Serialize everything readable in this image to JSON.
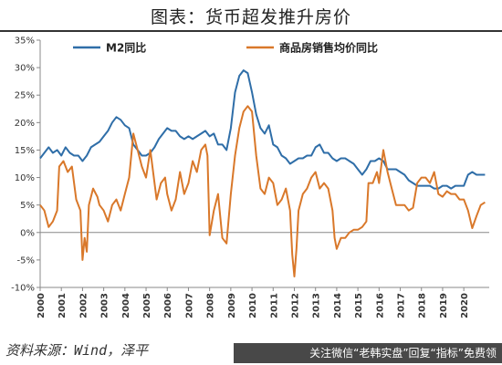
{
  "header": {
    "title": "图表：货币超发推升房价"
  },
  "footer": {
    "source": "资料来源：Wind，泽平",
    "banner": "关注微信“老韩实盘”回复“指标”免费领"
  },
  "chart_data": {
    "type": "line",
    "title": "图表：货币超发推升房价",
    "xlabel": "",
    "ylabel": "",
    "xlim": [
      2000,
      2021.2
    ],
    "ylim": [
      -10,
      35
    ],
    "yticks": [
      -10,
      -5,
      0,
      5,
      10,
      15,
      20,
      25,
      30,
      35
    ],
    "ytick_labels": [
      "-10%",
      "-5%",
      "0%",
      "5%",
      "10%",
      "15%",
      "20%",
      "25%",
      "30%",
      "35%"
    ],
    "xticks": [
      2000,
      2001,
      2002,
      2003,
      2004,
      2005,
      2006,
      2007,
      2008,
      2009,
      2010,
      2011,
      2012,
      2013,
      2014,
      2015,
      2016,
      2017,
      2018,
      2019,
      2020
    ],
    "xtick_labels": [
      "2000",
      "2001",
      "2002",
      "2003",
      "2004",
      "2005",
      "2006",
      "2007",
      "2008",
      "2009",
      "2010",
      "2011",
      "2012",
      "2013",
      "2014",
      "2015",
      "2016",
      "2017",
      "2018",
      "2019",
      "2020"
    ],
    "grid": false,
    "legend_position": "top",
    "series": [
      {
        "name": "M2同比",
        "color": "#2f6ea8",
        "points": [
          [
            2000.0,
            13.5
          ],
          [
            2000.2,
            14.5
          ],
          [
            2000.4,
            15.5
          ],
          [
            2000.6,
            14.5
          ],
          [
            2000.8,
            15.0
          ],
          [
            2001.0,
            14.0
          ],
          [
            2001.2,
            15.5
          ],
          [
            2001.4,
            14.5
          ],
          [
            2001.6,
            14.0
          ],
          [
            2001.8,
            14.0
          ],
          [
            2002.0,
            13.0
          ],
          [
            2002.2,
            14.0
          ],
          [
            2002.4,
            15.5
          ],
          [
            2002.6,
            16.0
          ],
          [
            2002.8,
            16.5
          ],
          [
            2003.0,
            17.5
          ],
          [
            2003.2,
            18.5
          ],
          [
            2003.4,
            20.0
          ],
          [
            2003.6,
            21.0
          ],
          [
            2003.8,
            20.5
          ],
          [
            2004.0,
            19.5
          ],
          [
            2004.2,
            19.0
          ],
          [
            2004.4,
            16.0
          ],
          [
            2004.6,
            15.0
          ],
          [
            2004.8,
            14.0
          ],
          [
            2005.0,
            14.0
          ],
          [
            2005.2,
            14.5
          ],
          [
            2005.4,
            15.5
          ],
          [
            2005.6,
            17.0
          ],
          [
            2005.8,
            18.0
          ],
          [
            2006.0,
            19.0
          ],
          [
            2006.2,
            18.5
          ],
          [
            2006.4,
            18.5
          ],
          [
            2006.6,
            17.5
          ],
          [
            2006.8,
            17.0
          ],
          [
            2007.0,
            17.5
          ],
          [
            2007.2,
            17.0
          ],
          [
            2007.4,
            17.5
          ],
          [
            2007.6,
            18.0
          ],
          [
            2007.8,
            18.5
          ],
          [
            2008.0,
            17.5
          ],
          [
            2008.2,
            18.0
          ],
          [
            2008.4,
            16.0
          ],
          [
            2008.6,
            16.0
          ],
          [
            2008.8,
            15.0
          ],
          [
            2009.0,
            19.0
          ],
          [
            2009.2,
            25.5
          ],
          [
            2009.4,
            28.5
          ],
          [
            2009.6,
            29.5
          ],
          [
            2009.8,
            29.0
          ],
          [
            2010.0,
            25.5
          ],
          [
            2010.2,
            21.5
          ],
          [
            2010.4,
            19.0
          ],
          [
            2010.6,
            18.0
          ],
          [
            2010.8,
            19.5
          ],
          [
            2011.0,
            16.0
          ],
          [
            2011.2,
            15.5
          ],
          [
            2011.4,
            14.0
          ],
          [
            2011.6,
            13.5
          ],
          [
            2011.8,
            12.5
          ],
          [
            2012.0,
            13.0
          ],
          [
            2012.2,
            13.5
          ],
          [
            2012.4,
            13.5
          ],
          [
            2012.6,
            14.0
          ],
          [
            2012.8,
            14.0
          ],
          [
            2013.0,
            15.5
          ],
          [
            2013.2,
            16.0
          ],
          [
            2013.4,
            14.5
          ],
          [
            2013.6,
            14.5
          ],
          [
            2013.8,
            13.5
          ],
          [
            2014.0,
            13.0
          ],
          [
            2014.2,
            13.5
          ],
          [
            2014.4,
            13.5
          ],
          [
            2014.6,
            13.0
          ],
          [
            2014.8,
            12.5
          ],
          [
            2015.0,
            11.5
          ],
          [
            2015.2,
            10.5
          ],
          [
            2015.4,
            11.5
          ],
          [
            2015.6,
            13.0
          ],
          [
            2015.8,
            13.0
          ],
          [
            2016.0,
            13.5
          ],
          [
            2016.2,
            13.0
          ],
          [
            2016.4,
            11.5
          ],
          [
            2016.6,
            11.5
          ],
          [
            2016.8,
            11.5
          ],
          [
            2017.0,
            11.0
          ],
          [
            2017.2,
            10.5
          ],
          [
            2017.4,
            9.5
          ],
          [
            2017.6,
            9.0
          ],
          [
            2017.8,
            8.5
          ],
          [
            2018.0,
            8.5
          ],
          [
            2018.2,
            8.5
          ],
          [
            2018.4,
            8.5
          ],
          [
            2018.6,
            8.0
          ],
          [
            2018.8,
            8.0
          ],
          [
            2019.0,
            8.5
          ],
          [
            2019.2,
            8.5
          ],
          [
            2019.4,
            8.0
          ],
          [
            2019.6,
            8.5
          ],
          [
            2019.8,
            8.5
          ],
          [
            2020.0,
            8.5
          ],
          [
            2020.2,
            10.5
          ],
          [
            2020.4,
            11.0
          ],
          [
            2020.6,
            10.5
          ],
          [
            2020.8,
            10.5
          ],
          [
            2021.0,
            10.5
          ]
        ]
      },
      {
        "name": "商品房销售均价同比",
        "color": "#d9782a",
        "points": [
          [
            2000.0,
            5.0
          ],
          [
            2000.2,
            4.0
          ],
          [
            2000.4,
            1.0
          ],
          [
            2000.6,
            2.0
          ],
          [
            2000.8,
            4.0
          ],
          [
            2000.9,
            12.0
          ],
          [
            2001.1,
            13.0
          ],
          [
            2001.3,
            11.0
          ],
          [
            2001.5,
            12.0
          ],
          [
            2001.7,
            6.0
          ],
          [
            2001.9,
            4.0
          ],
          [
            2002.0,
            -5.0
          ],
          [
            2002.1,
            -1.0
          ],
          [
            2002.2,
            -3.5
          ],
          [
            2002.3,
            5.0
          ],
          [
            2002.5,
            8.0
          ],
          [
            2002.7,
            6.5
          ],
          [
            2002.8,
            5.0
          ],
          [
            2003.0,
            4.0
          ],
          [
            2003.2,
            2.0
          ],
          [
            2003.4,
            5.0
          ],
          [
            2003.6,
            6.0
          ],
          [
            2003.8,
            4.0
          ],
          [
            2004.0,
            7.0
          ],
          [
            2004.2,
            10.0
          ],
          [
            2004.4,
            18.0
          ],
          [
            2004.6,
            15.0
          ],
          [
            2004.8,
            12.0
          ],
          [
            2005.0,
            10.0
          ],
          [
            2005.2,
            15.0
          ],
          [
            2005.3,
            12.0
          ],
          [
            2005.5,
            6.0
          ],
          [
            2005.7,
            9.0
          ],
          [
            2005.9,
            10.0
          ],
          [
            2006.0,
            7.0
          ],
          [
            2006.2,
            4.0
          ],
          [
            2006.4,
            6.0
          ],
          [
            2006.6,
            11.0
          ],
          [
            2006.8,
            7.0
          ],
          [
            2007.0,
            9.0
          ],
          [
            2007.2,
            13.0
          ],
          [
            2007.4,
            11.0
          ],
          [
            2007.6,
            15.0
          ],
          [
            2007.8,
            16.0
          ],
          [
            2007.9,
            14.0
          ],
          [
            2008.0,
            -0.5
          ],
          [
            2008.2,
            4.0
          ],
          [
            2008.4,
            7.0
          ],
          [
            2008.6,
            -1.0
          ],
          [
            2008.8,
            -2.0
          ],
          [
            2009.0,
            7.0
          ],
          [
            2009.2,
            14.0
          ],
          [
            2009.4,
            19.0
          ],
          [
            2009.6,
            22.0
          ],
          [
            2009.8,
            23.0
          ],
          [
            2010.0,
            22.0
          ],
          [
            2010.2,
            14.0
          ],
          [
            2010.4,
            8.0
          ],
          [
            2010.6,
            7.0
          ],
          [
            2010.8,
            10.0
          ],
          [
            2011.0,
            9.0
          ],
          [
            2011.2,
            5.0
          ],
          [
            2011.4,
            6.0
          ],
          [
            2011.6,
            8.0
          ],
          [
            2011.8,
            4.0
          ],
          [
            2011.9,
            -4.0
          ],
          [
            2012.0,
            -8.0
          ],
          [
            2012.1,
            -3.0
          ],
          [
            2012.2,
            4.0
          ],
          [
            2012.4,
            7.0
          ],
          [
            2012.6,
            8.0
          ],
          [
            2012.8,
            10.0
          ],
          [
            2013.0,
            11.0
          ],
          [
            2013.2,
            8.0
          ],
          [
            2013.4,
            9.0
          ],
          [
            2013.6,
            8.0
          ],
          [
            2013.8,
            4.0
          ],
          [
            2013.9,
            -1.0
          ],
          [
            2014.0,
            -3.0
          ],
          [
            2014.2,
            -1.0
          ],
          [
            2014.4,
            -1.0
          ],
          [
            2014.6,
            0.0
          ],
          [
            2014.8,
            0.5
          ],
          [
            2015.0,
            0.5
          ],
          [
            2015.2,
            1.0
          ],
          [
            2015.4,
            2.0
          ],
          [
            2015.5,
            9.0
          ],
          [
            2015.7,
            9.0
          ],
          [
            2015.9,
            11.0
          ],
          [
            2016.0,
            9.0
          ],
          [
            2016.2,
            15.0
          ],
          [
            2016.4,
            11.0
          ],
          [
            2016.6,
            8.0
          ],
          [
            2016.8,
            5.0
          ],
          [
            2017.0,
            5.0
          ],
          [
            2017.2,
            5.0
          ],
          [
            2017.4,
            4.0
          ],
          [
            2017.6,
            4.5
          ],
          [
            2017.8,
            9.0
          ],
          [
            2018.0,
            10.0
          ],
          [
            2018.2,
            10.0
          ],
          [
            2018.4,
            9.0
          ],
          [
            2018.6,
            11.0
          ],
          [
            2018.8,
            7.0
          ],
          [
            2019.0,
            6.5
          ],
          [
            2019.2,
            7.5
          ],
          [
            2019.4,
            7.0
          ],
          [
            2019.6,
            7.0
          ],
          [
            2019.8,
            6.0
          ],
          [
            2020.0,
            6.0
          ],
          [
            2020.2,
            4.0
          ],
          [
            2020.4,
            0.8
          ],
          [
            2020.6,
            3.0
          ],
          [
            2020.8,
            5.0
          ],
          [
            2021.0,
            5.5
          ]
        ]
      }
    ]
  }
}
